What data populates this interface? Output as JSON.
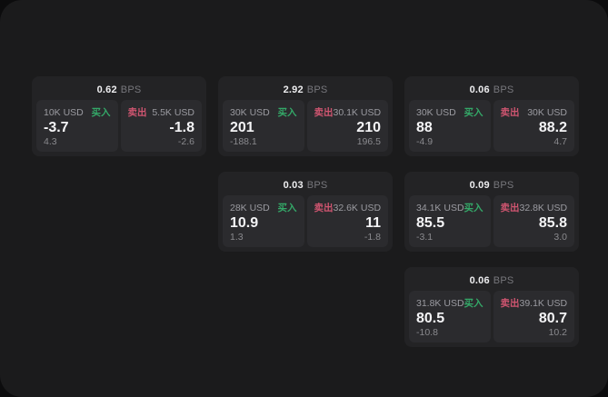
{
  "labels": {
    "bps": "BPS",
    "buy": "买入",
    "sell": "卖出"
  },
  "colors": {
    "panel": "#1b1b1c",
    "card": "#232325",
    "cell": "#2b2b2e",
    "buy_green": "#34a868",
    "sell_red": "#cf5570"
  },
  "cards": [
    {
      "bps": "0.62",
      "buy": {
        "amount": "10K USD",
        "value": "-3.7",
        "delta": "4.3"
      },
      "sell": {
        "amount": "5.5K USD",
        "value": "-1.8",
        "delta": "-2.6"
      }
    },
    {
      "bps": "2.92",
      "buy": {
        "amount": "30K USD",
        "value": "201",
        "delta": "-188.1"
      },
      "sell": {
        "amount": "30.1K USD",
        "value": "210",
        "delta": "196.5"
      }
    },
    {
      "bps": "0.06",
      "buy": {
        "amount": "30K USD",
        "value": "88",
        "delta": "-4.9"
      },
      "sell": {
        "amount": "30K USD",
        "value": "88.2",
        "delta": "4.7"
      }
    },
    {
      "bps": "0.03",
      "buy": {
        "amount": "28K USD",
        "value": "10.9",
        "delta": "1.3"
      },
      "sell": {
        "amount": "32.6K USD",
        "value": "11",
        "delta": "-1.8"
      }
    },
    {
      "bps": "0.09",
      "buy": {
        "amount": "34.1K USD",
        "value": "85.5",
        "delta": "-3.1"
      },
      "sell": {
        "amount": "32.8K USD",
        "value": "85.8",
        "delta": "3.0"
      }
    },
    {
      "bps": "0.06",
      "buy": {
        "amount": "31.8K USD",
        "value": "80.5",
        "delta": "-10.8"
      },
      "sell": {
        "amount": "39.1K USD",
        "value": "80.7",
        "delta": "10.2"
      }
    }
  ]
}
